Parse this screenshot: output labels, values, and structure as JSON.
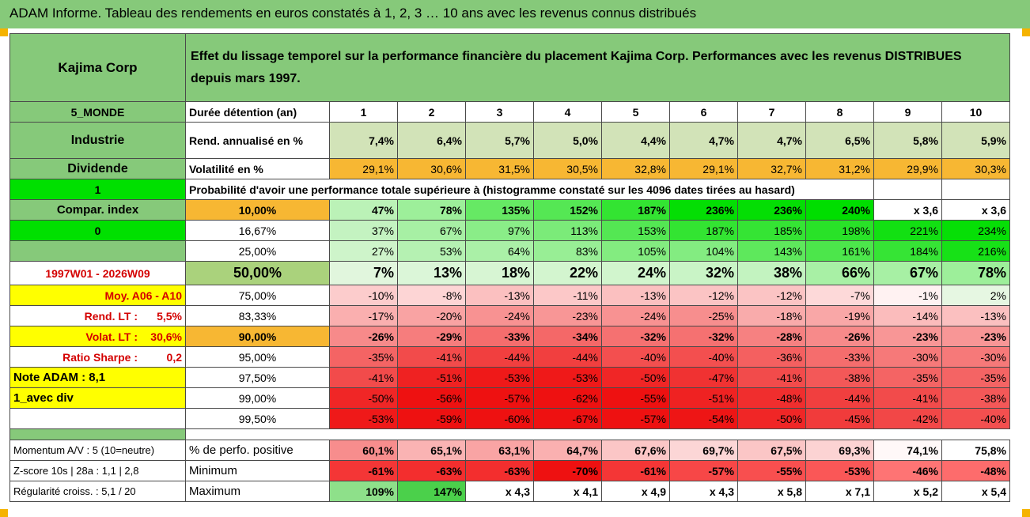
{
  "header": {
    "title": "ADAM Informe. Tableau des rendements en euros constatés à 1, 2, 3 … 10 ans avec les revenus connus distribués"
  },
  "colors": {
    "header_green": "#86c97a",
    "bright_green": "#00e000",
    "orange": "#f7b733",
    "yellow": "#ffff00",
    "light_green": "#d2e3b8",
    "deep_red": "#ee1111"
  },
  "sidebar": {
    "company": "Kajima Corp",
    "zone": "5_MONDE",
    "sector": "Industrie",
    "dividend": "Dividende",
    "flag1": "1",
    "compar_index": "Compar. index",
    "flag0": "0",
    "period": "1997W01 - 2026W09",
    "moy": "Moy. A06 - A10",
    "rend_lt_label": "Rend. LT :",
    "rend_lt_value": "5,5%",
    "volat_lt_label": "Volat. LT :",
    "volat_lt_value": "30,6%",
    "sharpe_label": "Ratio Sharpe :",
    "sharpe_value": "0,2",
    "note": "Note ADAM : 8,1",
    "div_mode": "1_avec div"
  },
  "main": {
    "description": "Effet du lissage temporel sur la performance financière du placement Kajima Corp. Performances avec les revenus DISTRIBUES depuis mars 1997.",
    "duration_label": "Durée détention (an)",
    "years": [
      "1",
      "2",
      "3",
      "4",
      "5",
      "6",
      "7",
      "8",
      "9",
      "10"
    ],
    "rend_label": "Rend. annualisé en %",
    "rend": [
      "7,4%",
      "6,4%",
      "5,7%",
      "5,0%",
      "4,4%",
      "4,7%",
      "4,7%",
      "6,5%",
      "5,8%",
      "5,9%"
    ],
    "vol_label": "Volatilité en %",
    "vol": [
      "29,1%",
      "30,6%",
      "31,5%",
      "30,5%",
      "32,8%",
      "29,1%",
      "32,7%",
      "31,2%",
      "29,9%",
      "30,3%"
    ],
    "proba_title": "Probabilité d'avoir une performance totale supérieure à (histogramme constaté sur les 4096 dates tirées au hasard)"
  },
  "quantiles": [
    {
      "label": "10,00%",
      "values": [
        "47%",
        "78%",
        "135%",
        "152%",
        "187%",
        "236%",
        "236%",
        "240%",
        "x 3,6",
        "x 3,6"
      ]
    },
    {
      "label": "16,67%",
      "values": [
        "37%",
        "67%",
        "97%",
        "113%",
        "153%",
        "187%",
        "185%",
        "198%",
        "221%",
        "234%"
      ]
    },
    {
      "label": "25,00%",
      "values": [
        "27%",
        "53%",
        "64%",
        "83%",
        "105%",
        "104%",
        "143%",
        "161%",
        "184%",
        "216%"
      ]
    },
    {
      "label": "50,00%",
      "values": [
        "7%",
        "13%",
        "18%",
        "22%",
        "24%",
        "32%",
        "38%",
        "66%",
        "67%",
        "78%"
      ]
    },
    {
      "label": "75,00%",
      "values": [
        "-10%",
        "-8%",
        "-13%",
        "-11%",
        "-13%",
        "-12%",
        "-12%",
        "-7%",
        "-1%",
        "2%"
      ]
    },
    {
      "label": "83,33%",
      "values": [
        "-17%",
        "-20%",
        "-24%",
        "-23%",
        "-24%",
        "-25%",
        "-18%",
        "-19%",
        "-14%",
        "-13%"
      ]
    },
    {
      "label": "90,00%",
      "values": [
        "-26%",
        "-29%",
        "-33%",
        "-34%",
        "-32%",
        "-32%",
        "-28%",
        "-26%",
        "-23%",
        "-23%"
      ]
    },
    {
      "label": "95,00%",
      "values": [
        "-35%",
        "-41%",
        "-44%",
        "-44%",
        "-40%",
        "-40%",
        "-36%",
        "-33%",
        "-30%",
        "-30%"
      ]
    },
    {
      "label": "97,50%",
      "values": [
        "-41%",
        "-51%",
        "-53%",
        "-53%",
        "-50%",
        "-47%",
        "-41%",
        "-38%",
        "-35%",
        "-35%"
      ]
    },
    {
      "label": "99,00%",
      "values": [
        "-50%",
        "-56%",
        "-57%",
        "-62%",
        "-55%",
        "-51%",
        "-48%",
        "-44%",
        "-41%",
        "-38%"
      ]
    },
    {
      "label": "99,50%",
      "values": [
        "-53%",
        "-59%",
        "-60%",
        "-67%",
        "-57%",
        "-54%",
        "-50%",
        "-45%",
        "-42%",
        "-40%"
      ]
    }
  ],
  "stats": [
    {
      "side": "Momentum A/V : 5 (10=neutre)",
      "label": "% de perfo. positive",
      "values": [
        "60,1%",
        "65,1%",
        "63,1%",
        "64,7%",
        "67,6%",
        "69,7%",
        "67,5%",
        "69,3%",
        "74,1%",
        "75,8%"
      ]
    },
    {
      "side": "Z-score 10s | 28a : 1,1 | 2,8",
      "label": "Minimum",
      "values": [
        "-61%",
        "-63%",
        "-63%",
        "-70%",
        "-61%",
        "-57%",
        "-55%",
        "-53%",
        "-46%",
        "-48%"
      ]
    },
    {
      "side": "Régularité croiss. : 5,1 / 20",
      "label": "Maximum",
      "values": [
        "109%",
        "147%",
        "x 4,3",
        "x 4,1",
        "x 4,9",
        "x 4,3",
        "x 5,8",
        "x 7,1",
        "x 5,2",
        "x 5,4"
      ]
    }
  ]
}
